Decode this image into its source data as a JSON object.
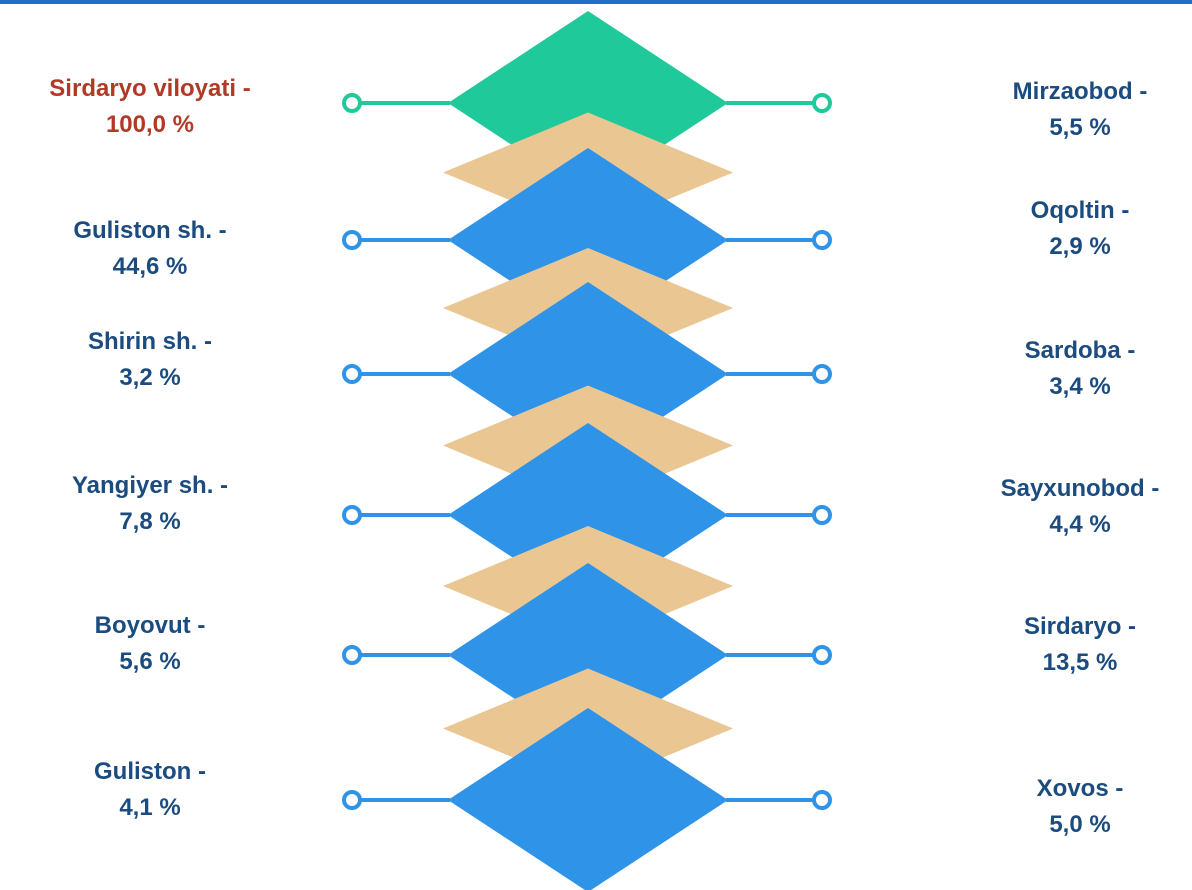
{
  "colors": {
    "top_border": "#1f6fc7",
    "total_diamond": "#1fc99a",
    "district_diamond": "#2f93e8",
    "connector_diamond": "#e9c692",
    "total_connector": "#1fc99a",
    "district_connector": "#2f93e8",
    "total_text": "#b13a26",
    "district_text": "#1b4b7f"
  },
  "left_items": [
    {
      "name": "Sirdaryo viloyati -",
      "value": "100,0 %",
      "highlight": true
    },
    {
      "name": "Guliston sh. -",
      "value": "44,6 %",
      "highlight": false
    },
    {
      "name": "Shirin sh. -",
      "value": "3,2 %",
      "highlight": false
    },
    {
      "name": "Yangiyer sh. -",
      "value": "7,8 %",
      "highlight": false
    },
    {
      "name": "Boyovut  -",
      "value": "5,6 %",
      "highlight": false
    },
    {
      "name": "Guliston -",
      "value": "4,1 %",
      "highlight": false
    }
  ],
  "right_items": [
    {
      "name": "Mirzaobod -",
      "value": "5,5 %"
    },
    {
      "name": "Oqoltin -",
      "value": "2,9 %"
    },
    {
      "name": "Sardoba -",
      "value": "3,4 %"
    },
    {
      "name": "Sayxunobod -",
      "value": "4,4 %"
    },
    {
      "name": "Sirdaryo -",
      "value": "13,5 %"
    },
    {
      "name": "Xovos -",
      "value": "5,0 %"
    }
  ]
}
